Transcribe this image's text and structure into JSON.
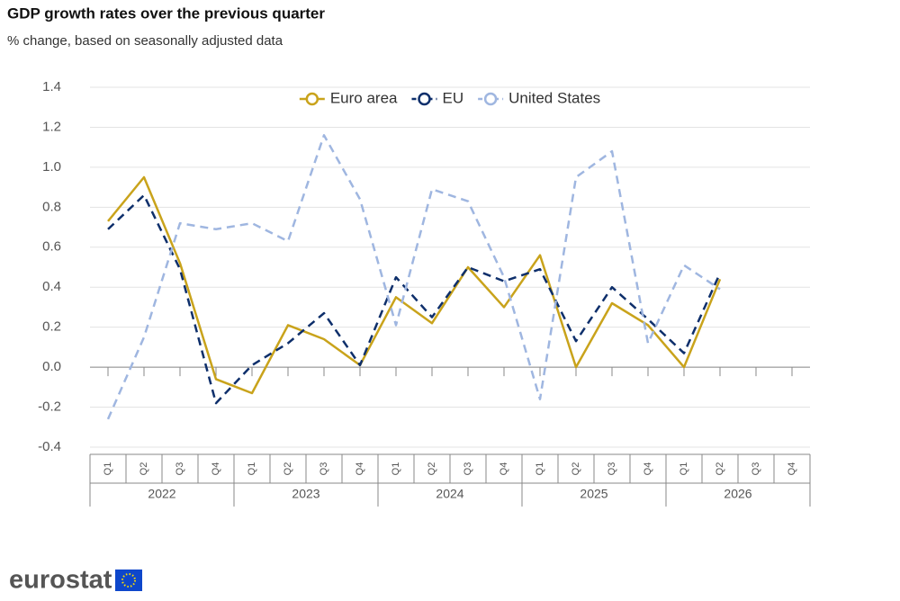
{
  "chart_data": {
    "type": "line",
    "title": "GDP growth rates over the previous quarter",
    "subtitle": "% change, based on seasonally adjusted data",
    "categories": [
      "Q1",
      "Q2",
      "Q3",
      "Q4",
      "Q1",
      "Q2",
      "Q3",
      "Q4",
      "Q1",
      "Q2",
      "Q3",
      "Q4",
      "Q1",
      "Q2",
      "Q3",
      "Q4",
      "Q1",
      "Q2",
      "Q3",
      "Q4"
    ],
    "groups": [
      "2022",
      "2023",
      "2024",
      "2025",
      "2026"
    ],
    "series": [
      {
        "name": "Euro area",
        "color": "#c9a31b",
        "dashed": false,
        "values": [
          0.73,
          0.95,
          0.52,
          -0.06,
          -0.13,
          0.21,
          0.14,
          0.01,
          0.35,
          0.22,
          0.5,
          0.3,
          0.56,
          0.0,
          0.32,
          0.21,
          0.0,
          0.44,
          null,
          null
        ]
      },
      {
        "name": "EU",
        "color": "#0e2f6b",
        "dashed": true,
        "values": [
          0.69,
          0.86,
          0.49,
          -0.18,
          0.01,
          0.12,
          0.27,
          0.01,
          0.45,
          0.25,
          0.5,
          0.43,
          0.49,
          0.13,
          0.4,
          0.24,
          0.07,
          0.47,
          null,
          null
        ]
      },
      {
        "name": "United States",
        "color": "#9fb6e0",
        "dashed": true,
        "values": [
          -0.26,
          0.15,
          0.72,
          0.69,
          0.72,
          0.63,
          1.16,
          0.84,
          0.21,
          0.89,
          0.83,
          0.45,
          -0.16,
          0.95,
          1.08,
          0.12,
          0.51,
          0.39,
          null,
          null
        ]
      }
    ],
    "ylim": [
      -0.4,
      1.4
    ],
    "yticks": [
      -0.4,
      -0.2,
      {
        "value": 0,
        "label": "0.0"
      },
      0.2,
      0.4,
      0.6,
      0.8,
      {
        "value": 1,
        "label": "1.0"
      },
      1.2,
      1.4
    ],
    "grid": true,
    "legend": "top",
    "logo": "eurostat"
  }
}
